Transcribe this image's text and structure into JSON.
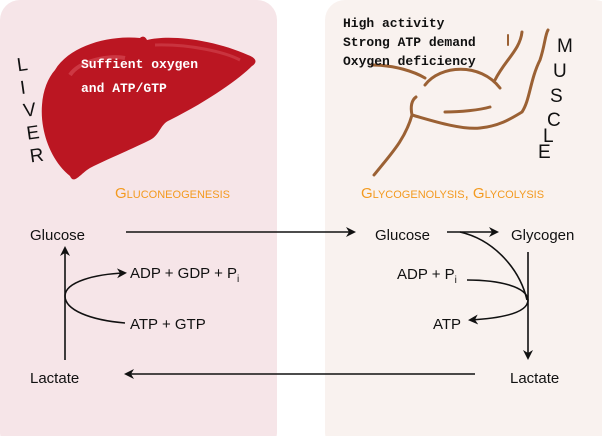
{
  "colors": {
    "liver_panel": "#f6e5e8",
    "muscle_panel": "#f9f2ef",
    "liver": "#bb1622",
    "muscle_outline": "#9b6134",
    "process_label": "#f39a1f"
  },
  "liver": {
    "organ_label": [
      "L",
      "I",
      "V",
      "E",
      "R"
    ],
    "note_lines": [
      "Suffient oxygen",
      "and ATP/GTP"
    ],
    "process": "Gluconeogenesis",
    "glucose": "Glucose",
    "lactate": "Lactate",
    "products": "ADP + GDP + P",
    "products_sub": "i",
    "inputs": "ATP + GTP"
  },
  "muscle": {
    "organ_label": [
      "M",
      "U",
      "S",
      "C",
      "L",
      "E"
    ],
    "note_lines": [
      "High activity",
      "Strong ATP demand",
      "Oxygen deficiency"
    ],
    "process": "Glycogenolysis, Glycolysis",
    "glucose": "Glucose",
    "glycogen": "Glycogen",
    "inputs": "ADP + P",
    "inputs_sub": "i",
    "products": "ATP",
    "lactate": "Lactate"
  }
}
